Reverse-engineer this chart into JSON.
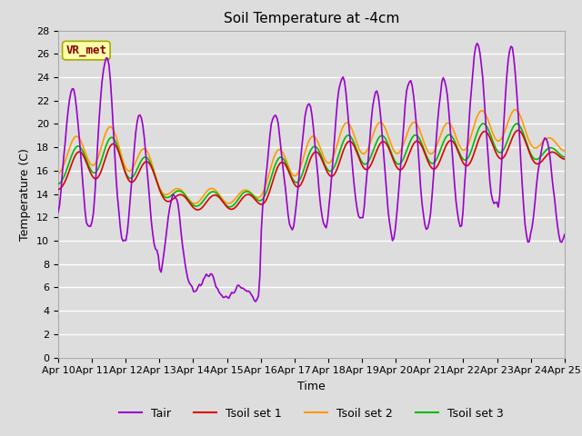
{
  "title": "Soil Temperature at -4cm",
  "xlabel": "Time",
  "ylabel": "Temperature (C)",
  "ylim": [
    0,
    28
  ],
  "yticks": [
    0,
    2,
    4,
    6,
    8,
    10,
    12,
    14,
    16,
    18,
    20,
    22,
    24,
    26,
    28
  ],
  "x_tick_labels": [
    "Apr 10",
    "Apr 11",
    "Apr 12",
    "Apr 13",
    "Apr 14",
    "Apr 15",
    "Apr 16",
    "Apr 17",
    "Apr 18",
    "Apr 19",
    "Apr 20",
    "Apr 21",
    "Apr 22",
    "Apr 23",
    "Apr 24",
    "Apr 25"
  ],
  "colors": {
    "Tair": "#9900cc",
    "Tsoil1": "#dd0000",
    "Tsoil2": "#ff9900",
    "Tsoil3": "#00bb00"
  },
  "legend_labels": [
    "Tair",
    "Tsoil set 1",
    "Tsoil set 2",
    "Tsoil set 3"
  ],
  "annotation_text": "VR_met",
  "annotation_color": "#880000",
  "annotation_bg": "#ffffaa",
  "annotation_edge": "#aaaa00",
  "plot_bg": "#dddddd",
  "grid_color": "#ffffff",
  "title_fontsize": 11,
  "axis_fontsize": 9,
  "tick_fontsize": 8,
  "legend_fontsize": 9,
  "linewidth": 1.2
}
